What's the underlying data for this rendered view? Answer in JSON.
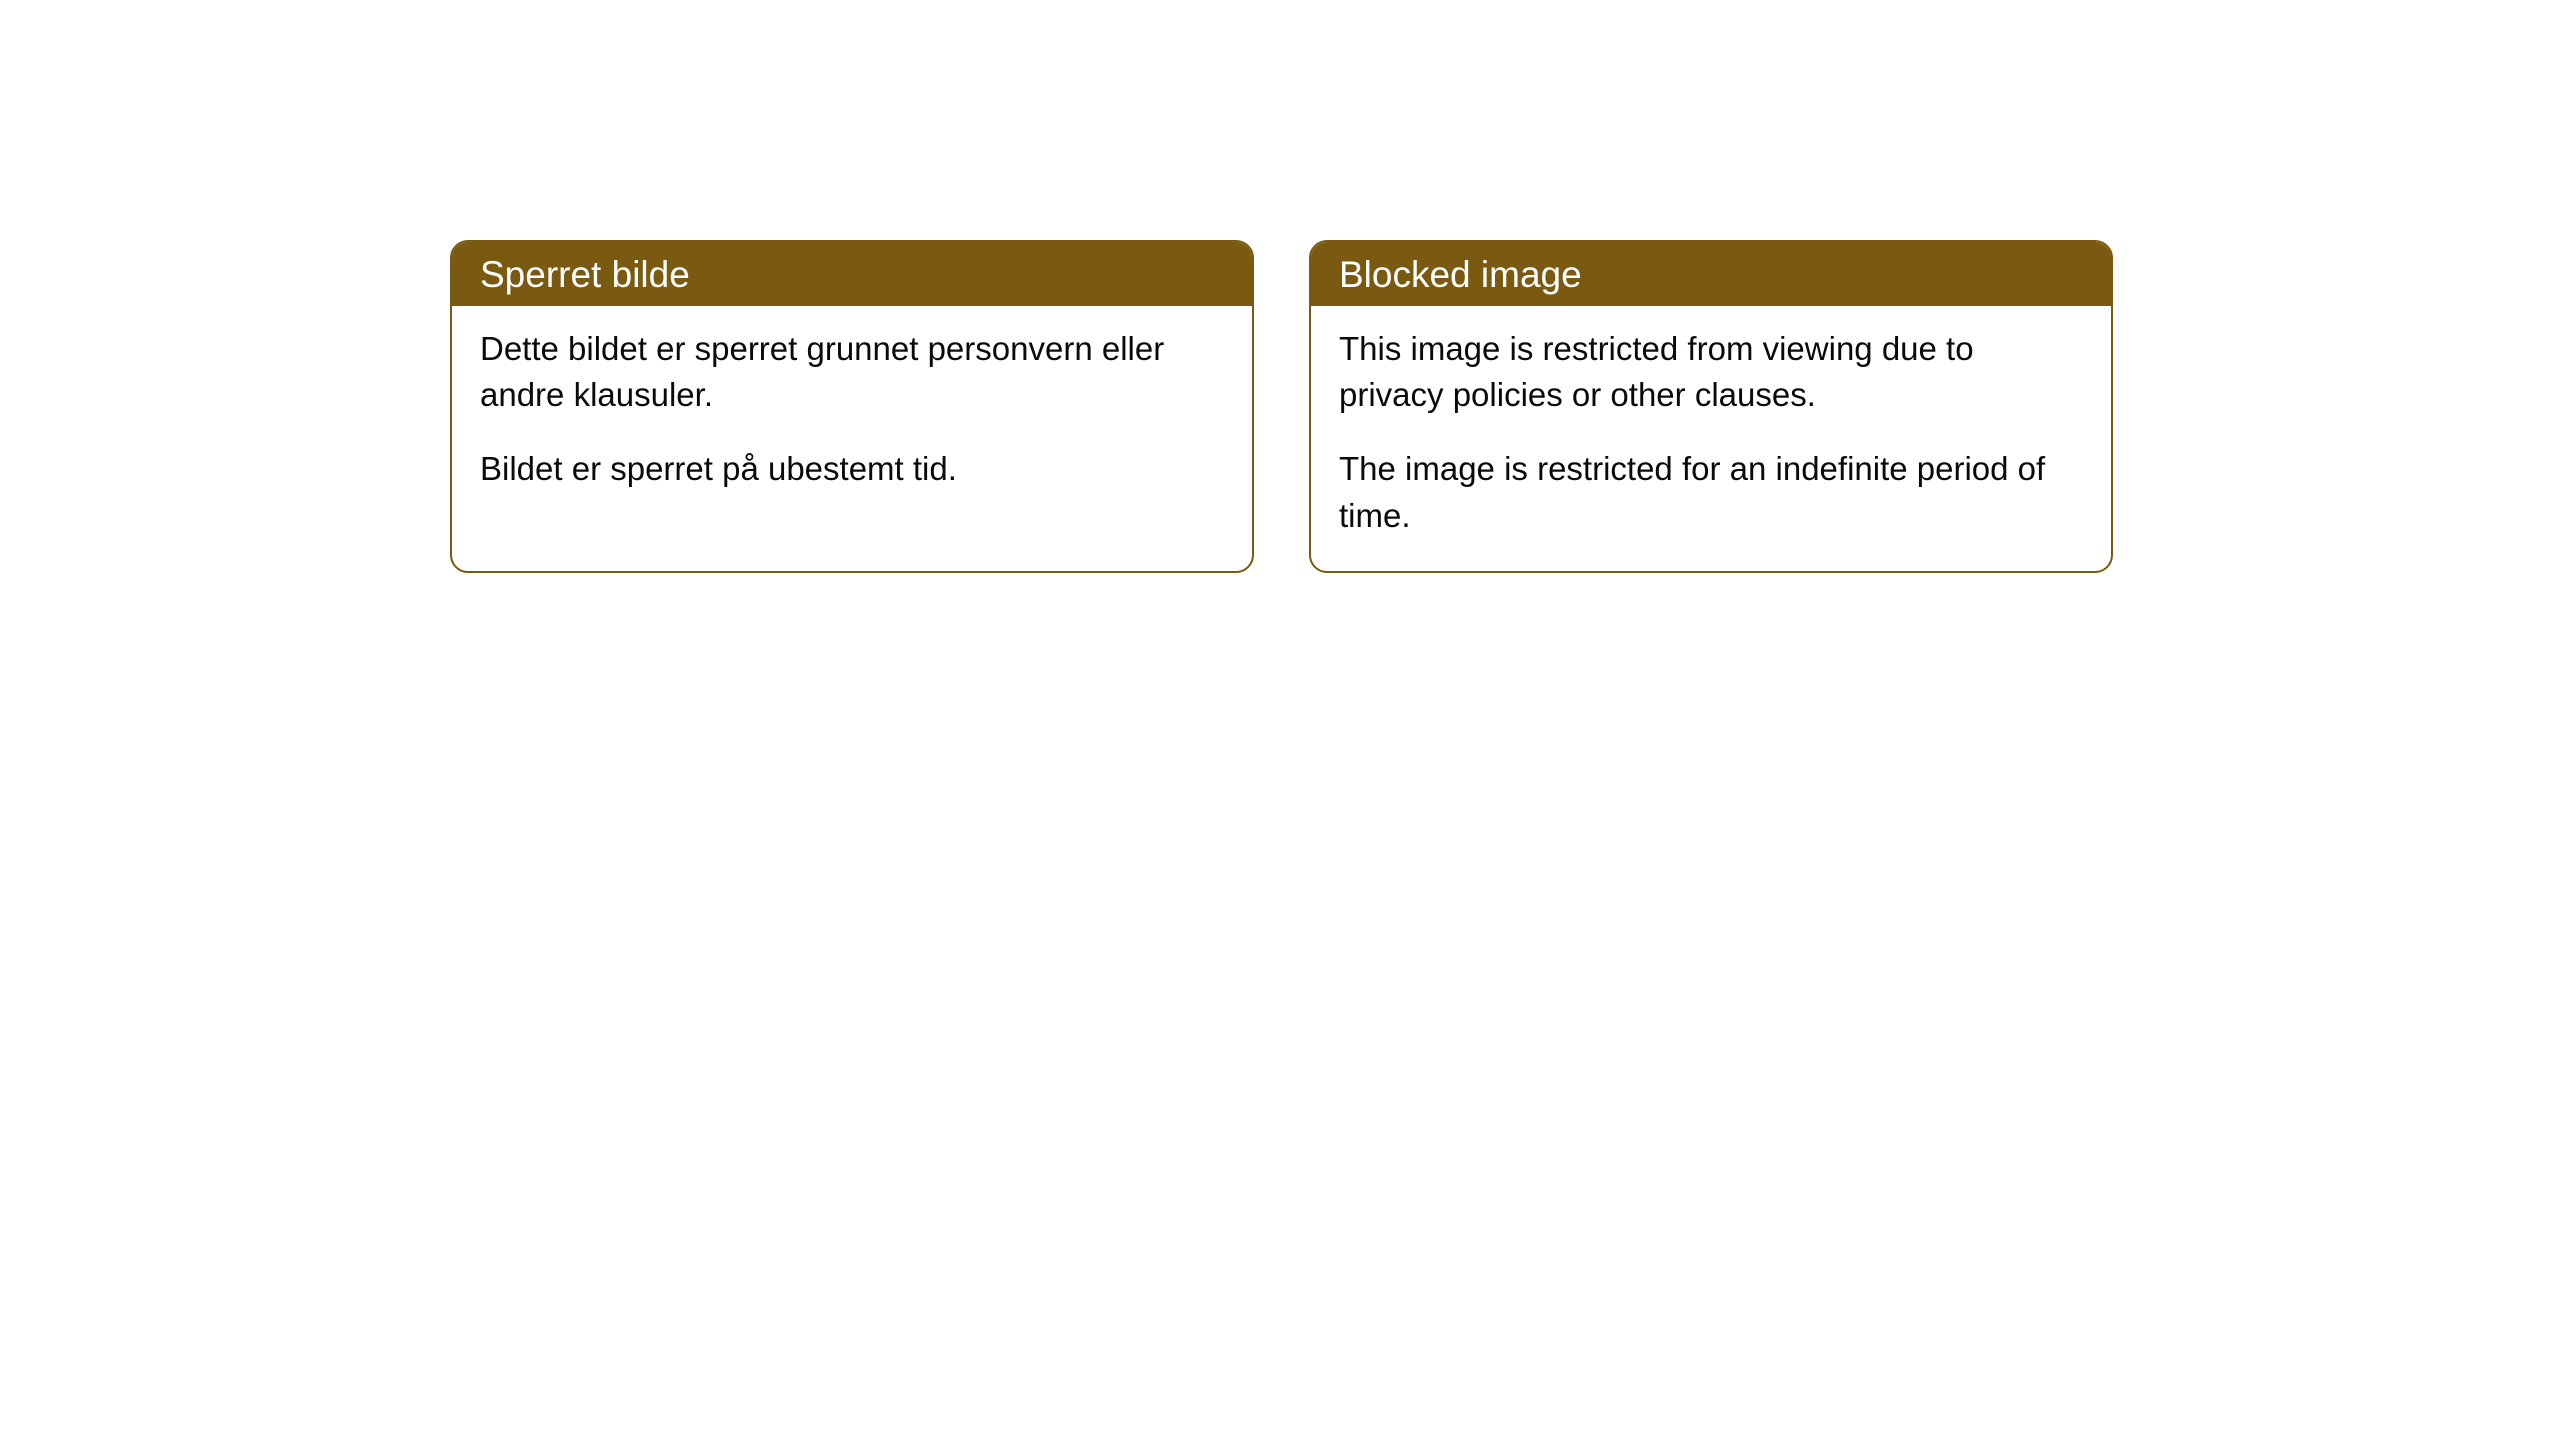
{
  "theme": {
    "accent_color": "#7a5a10",
    "background_color": "#ffffff",
    "text_color": "#0a0a0a",
    "header_text_color": "#ffffff",
    "border_radius": "18px",
    "header_fontsize": 37,
    "body_fontsize": 33
  },
  "cards": [
    {
      "title": "Sperret bilde",
      "paragraphs": [
        "Dette bildet er sperret grunnet personvern eller andre klausuler.",
        "Bildet er sperret på ubestemt tid."
      ]
    },
    {
      "title": "Blocked image",
      "paragraphs": [
        "This image is restricted from viewing due to privacy policies or other clauses.",
        "The image is restricted for an indefinite period of time."
      ]
    }
  ]
}
